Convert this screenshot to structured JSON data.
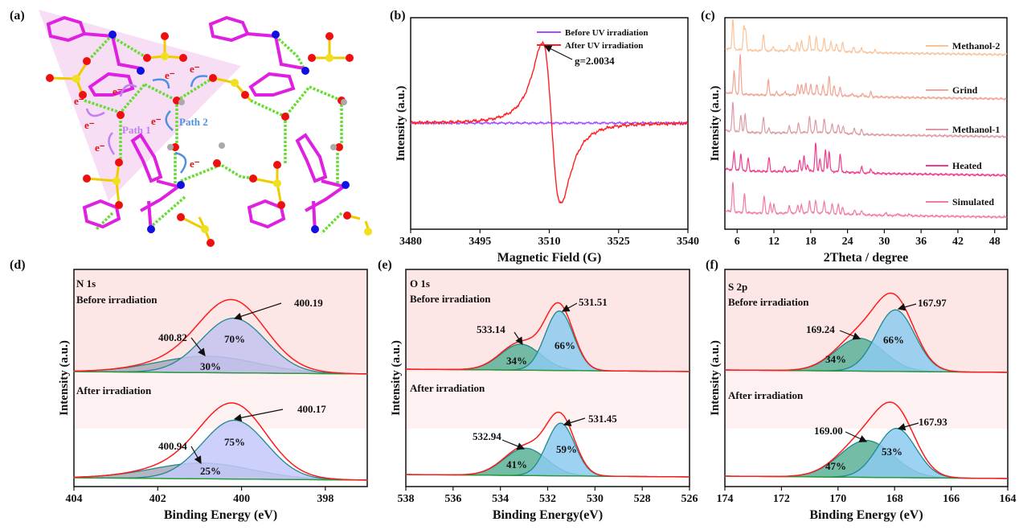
{
  "figure": {
    "panel_labels": [
      "(a)",
      "(b)",
      "(c)",
      "(d)",
      "(e)",
      "(f)"
    ]
  },
  "structure": {
    "path1": "Path 1",
    "path2": "Path 2",
    "electron": "e⁻",
    "colors": {
      "carbon": "#e020e0",
      "nitrogen": "#1010e0",
      "oxygen": "#ee1010",
      "sulfur": "#f0e020",
      "hydrogen": "#bfe8f0",
      "hbond": "#66dd33",
      "path1": "#c080f0",
      "path2": "#5090e0"
    }
  },
  "chart_data": [
    {
      "id": "b",
      "type": "line",
      "xlabel": "Magnetic Field (G)",
      "ylabel": "Intensity (a.u.)",
      "xlim": [
        3480,
        3540
      ],
      "xticks": [
        "3480",
        "3495",
        "3510",
        "3525",
        "3540"
      ],
      "legend": "top-right",
      "series": [
        {
          "name": "Before UV irradiation",
          "color": "#a64dff",
          "amplitude": 0
        },
        {
          "name": "After UV irradiation",
          "color": "#ff2020",
          "center": 3510.5,
          "peak_to_peak_width": 4,
          "amplitude": 1
        }
      ],
      "annotation": {
        "text": "g=2.0034",
        "x": 3508.5
      }
    },
    {
      "id": "c",
      "type": "line",
      "xlabel": "2Theta / degree",
      "ylabel": "Intensity (a.u.)",
      "xlim": [
        4,
        50
      ],
      "xticks": [
        "6",
        "12",
        "18",
        "24",
        "30",
        "36",
        "42",
        "48"
      ],
      "legend": "right",
      "series": [
        {
          "name": "Methanol-2",
          "color": "#f8c49c",
          "peaks": [
            [
              5.3,
              1.0
            ],
            [
              7.1,
              0.75
            ],
            [
              7.4,
              0.6
            ],
            [
              10.3,
              0.55
            ],
            [
              11.9,
              0.15
            ],
            [
              14.5,
              0.2
            ],
            [
              15.8,
              0.25
            ],
            [
              16.5,
              0.3
            ],
            [
              17.8,
              0.5
            ],
            [
              18.9,
              0.45
            ],
            [
              20.2,
              0.4
            ],
            [
              21.3,
              0.3
            ],
            [
              22.2,
              0.25
            ],
            [
              23.2,
              0.3
            ],
            [
              25.0,
              0.15
            ],
            [
              26.3,
              0.15
            ],
            [
              28.5,
              0.08
            ]
          ]
        },
        {
          "name": "Grind",
          "color": "#f0a493",
          "peaks": [
            [
              5.5,
              0.75
            ],
            [
              6.5,
              1.3
            ],
            [
              11.1,
              0.5
            ],
            [
              12.4,
              0.1
            ],
            [
              13.8,
              0.12
            ],
            [
              15.9,
              0.3
            ],
            [
              16.5,
              0.35
            ],
            [
              17.2,
              0.38
            ],
            [
              18.0,
              0.35
            ],
            [
              19.0,
              0.35
            ],
            [
              20.0,
              0.3
            ],
            [
              21.0,
              0.6
            ],
            [
              21.8,
              0.3
            ],
            [
              22.8,
              0.25
            ],
            [
              24.8,
              0.1
            ],
            [
              26.5,
              0.12
            ],
            [
              27.8,
              0.15
            ]
          ]
        },
        {
          "name": "Methanol-1",
          "color": "#dd9aa4",
          "peaks": [
            [
              5.3,
              0.95
            ],
            [
              6.6,
              0.55
            ],
            [
              7.3,
              0.6
            ],
            [
              10.3,
              0.5
            ],
            [
              11.2,
              0.15
            ],
            [
              14.5,
              0.2
            ],
            [
              16.0,
              0.3
            ],
            [
              17.8,
              0.5
            ],
            [
              18.8,
              0.4
            ],
            [
              20.2,
              0.45
            ],
            [
              21.5,
              0.3
            ],
            [
              22.5,
              0.3
            ],
            [
              23.3,
              0.25
            ],
            [
              25.1,
              0.2
            ],
            [
              26.3,
              0.15
            ]
          ]
        },
        {
          "name": "Heated",
          "color": "#f03c8c",
          "peaks": [
            [
              5.5,
              0.6
            ],
            [
              6.6,
              0.55
            ],
            [
              7.8,
              0.4
            ],
            [
              11.2,
              0.45
            ],
            [
              13.7,
              0.15
            ],
            [
              16.2,
              0.35
            ],
            [
              16.9,
              0.5
            ],
            [
              17.5,
              0.2
            ],
            [
              18.8,
              0.9
            ],
            [
              19.5,
              0.4
            ],
            [
              20.4,
              0.7
            ],
            [
              21.0,
              0.65
            ],
            [
              22.8,
              0.6
            ],
            [
              26.3,
              0.2
            ],
            [
              27.8,
              0.15
            ]
          ]
        },
        {
          "name": "Simulated",
          "color": "#f47aa4",
          "peaks": [
            [
              5.3,
              0.95
            ],
            [
              7.2,
              0.6
            ],
            [
              10.4,
              0.55
            ],
            [
              11.4,
              0.3
            ],
            [
              12.0,
              0.3
            ],
            [
              14.5,
              0.25
            ],
            [
              15.9,
              0.25
            ],
            [
              16.5,
              0.25
            ],
            [
              17.8,
              0.4
            ],
            [
              18.8,
              0.4
            ],
            [
              20.2,
              0.4
            ],
            [
              21.5,
              0.3
            ],
            [
              22.5,
              0.3
            ],
            [
              23.2,
              0.2
            ],
            [
              25.2,
              0.15
            ],
            [
              26.3,
              0.15
            ],
            [
              30.3,
              0.1
            ],
            [
              32.2,
              0.08
            ],
            [
              34.0,
              0.06
            ]
          ]
        }
      ]
    },
    {
      "id": "d",
      "type": "area",
      "element": "N 1s",
      "xlabel": "Binding Energy (eV)",
      "ylabel": "Intensity (a.u.)",
      "xlim": [
        404,
        397
      ],
      "xticks": [
        "404",
        "402",
        "400",
        "398"
      ],
      "spectra": [
        {
          "label": "Before irradiation",
          "components": [
            {
              "label": "400.19",
              "center": 400.19,
              "fwhm": 1.8,
              "height": 0.8,
              "percent": "70%",
              "color": "#c4c2ee"
            },
            {
              "label": "400.82",
              "center": 400.82,
              "fwhm": 2.8,
              "height": 0.24,
              "percent": "30%",
              "color": "#a9a8b8"
            }
          ]
        },
        {
          "label": "After irradiation",
          "components": [
            {
              "label": "400.17",
              "center": 400.17,
              "fwhm": 1.8,
              "height": 0.86,
              "percent": "75%",
              "color": "#c3c8fa"
            },
            {
              "label": "400.94",
              "center": 400.94,
              "fwhm": 2.8,
              "height": 0.23,
              "percent": "25%",
              "color": "#a9a8b8"
            }
          ]
        }
      ]
    },
    {
      "id": "e",
      "type": "area",
      "element": "O 1s",
      "xlabel": "Binding Energy(eV)",
      "ylabel": "Intensity (a.u.)",
      "xlim": [
        538,
        526
      ],
      "xticks": [
        "538",
        "536",
        "534",
        "532",
        "530",
        "528",
        "526"
      ],
      "spectra": [
        {
          "label": "Before irradiation",
          "components": [
            {
              "label": "531.51",
              "center": 531.51,
              "fwhm": 1.4,
              "height": 0.87,
              "percent": "66%",
              "color": "#8ccaf0"
            },
            {
              "label": "533.14",
              "center": 533.14,
              "fwhm": 2.0,
              "height": 0.38,
              "percent": "34%",
              "color": "#5bb096"
            }
          ]
        },
        {
          "label": "After irradiation",
          "components": [
            {
              "label": "531.45",
              "center": 531.45,
              "fwhm": 1.4,
              "height": 0.77,
              "percent": "59%",
              "color": "#8ccaf0"
            },
            {
              "label": "532.94",
              "center": 532.94,
              "fwhm": 2.1,
              "height": 0.4,
              "percent": "41%",
              "color": "#5bb096"
            }
          ]
        }
      ]
    },
    {
      "id": "f",
      "type": "area",
      "element": "S 2p",
      "xlabel": "Binding Energy (eV)",
      "ylabel": "Intensity (a.u.)",
      "xlim": [
        174,
        164
      ],
      "xticks": [
        "174",
        "172",
        "170",
        "168",
        "166",
        "164"
      ],
      "spectra": [
        {
          "label": "Before irradiation",
          "components": [
            {
              "label": "167.97",
              "center": 167.97,
              "fwhm": 1.6,
              "height": 0.9,
              "percent": "66%",
              "color": "#8ccaf0"
            },
            {
              "label": "169.24",
              "center": 169.24,
              "fwhm": 2.0,
              "height": 0.48,
              "percent": "34%",
              "color": "#5bb096"
            }
          ]
        },
        {
          "label": "After irradiation",
          "components": [
            {
              "label": "167.93",
              "center": 167.93,
              "fwhm": 1.6,
              "height": 0.72,
              "percent": "53%",
              "color": "#8ccaf0"
            },
            {
              "label": "169.00",
              "center": 169.0,
              "fwhm": 2.2,
              "height": 0.54,
              "percent": "47%",
              "color": "#5bb096"
            }
          ]
        }
      ]
    }
  ]
}
